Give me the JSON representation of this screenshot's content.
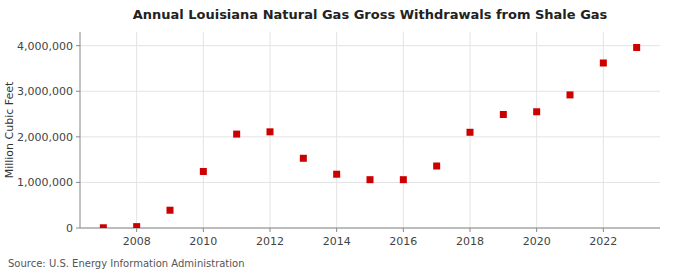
{
  "chart_data": {
    "type": "scatter",
    "title": "Annual Louisiana Natural Gas Gross Withdrawals from Shale Gas",
    "ylabel": "Million Cubic Feet",
    "annotations": [
      "Source: U.S. Energy Information Administration"
    ],
    "x": [
      2007,
      2008,
      2009,
      2010,
      2011,
      2012,
      2013,
      2014,
      2015,
      2016,
      2017,
      2018,
      2019,
      2020,
      2021,
      2022,
      2023
    ],
    "values": [
      5000,
      30000,
      390000,
      1240000,
      2060000,
      2110000,
      1530000,
      1180000,
      1060000,
      1060000,
      1360000,
      2100000,
      2490000,
      2550000,
      2920000,
      3620000,
      3960000
    ],
    "color": "#cc0000",
    "marker": "square",
    "xlim": [
      2006.3,
      2023.7
    ],
    "xticks": [
      2008,
      2010,
      2012,
      2014,
      2016,
      2018,
      2020,
      2022
    ],
    "ylim": [
      0,
      4300000
    ],
    "yticks": [
      0,
      {
        "value": 1000000,
        "label": "1,000,000"
      },
      {
        "value": 2000000,
        "label": "2,000,000"
      },
      {
        "value": 3000000,
        "label": "3,000,000"
      },
      {
        "value": 4000000,
        "label": "4,000,000"
      }
    ],
    "grid": true
  }
}
